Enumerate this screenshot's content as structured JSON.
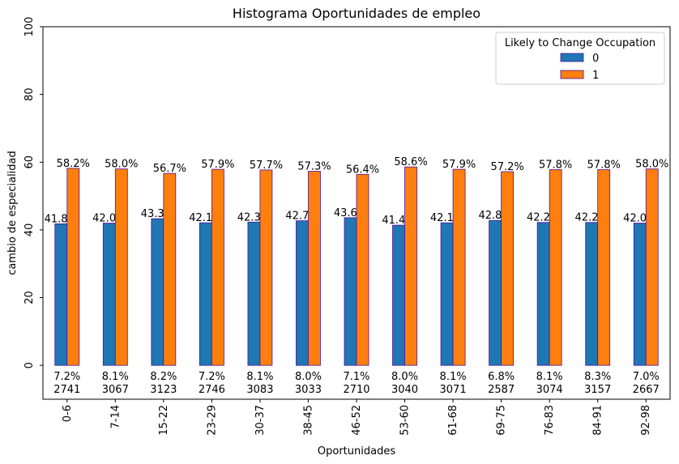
{
  "chart_data": {
    "type": "bar",
    "title": "Histograma Oportunidades de empleo",
    "xlabel": "Oportunidades",
    "ylabel": "cambio de especialidad",
    "ylim": [
      -10,
      100
    ],
    "yticks": [
      0,
      20,
      40,
      60,
      80,
      100
    ],
    "grid": false,
    "legend_position": "top-right",
    "categories": [
      "0-6",
      "7-14",
      "15-22",
      "23-29",
      "30-37",
      "38-45",
      "46-52",
      "53-60",
      "61-68",
      "69-75",
      "76-83",
      "84-91",
      "92-98"
    ],
    "legend": {
      "title": "Likely to Change Occupation"
    },
    "series": [
      {
        "name": "0",
        "color": "#1f77b4",
        "values": [
          41.8,
          42.0,
          43.3,
          42.1,
          42.3,
          42.7,
          43.6,
          41.4,
          42.1,
          42.8,
          42.2,
          42.2,
          42.0
        ],
        "labels": [
          "41.8%",
          "42.0%",
          "43.3%",
          "42.1%",
          "42.3%",
          "42.7%",
          "43.6%",
          "41.4%",
          "42.1%",
          "42.8%",
          "42.2%",
          "42.2%",
          "42.0%"
        ]
      },
      {
        "name": "1",
        "color": "#ff7f0e",
        "values": [
          58.2,
          58.0,
          56.7,
          57.9,
          57.7,
          57.3,
          56.4,
          58.6,
          57.9,
          57.2,
          57.8,
          57.8,
          58.0
        ],
        "labels": [
          "58.2%",
          "58.0%",
          "56.7%",
          "57.9%",
          "57.7%",
          "57.3%",
          "56.4%",
          "58.6%",
          "57.9%",
          "57.2%",
          "57.8%",
          "57.8%",
          "58.0%"
        ]
      }
    ],
    "bar_edge_color": "#4b0f9e",
    "category_share": [
      "7.2%",
      "8.1%",
      "8.2%",
      "7.2%",
      "8.1%",
      "8.0%",
      "7.1%",
      "8.0%",
      "8.1%",
      "6.8%",
      "8.1%",
      "8.3%",
      "7.0%"
    ],
    "category_count": [
      "2741",
      "3067",
      "3123",
      "2746",
      "3083",
      "3033",
      "2710",
      "3040",
      "3071",
      "2587",
      "3074",
      "3157",
      "2667"
    ]
  }
}
